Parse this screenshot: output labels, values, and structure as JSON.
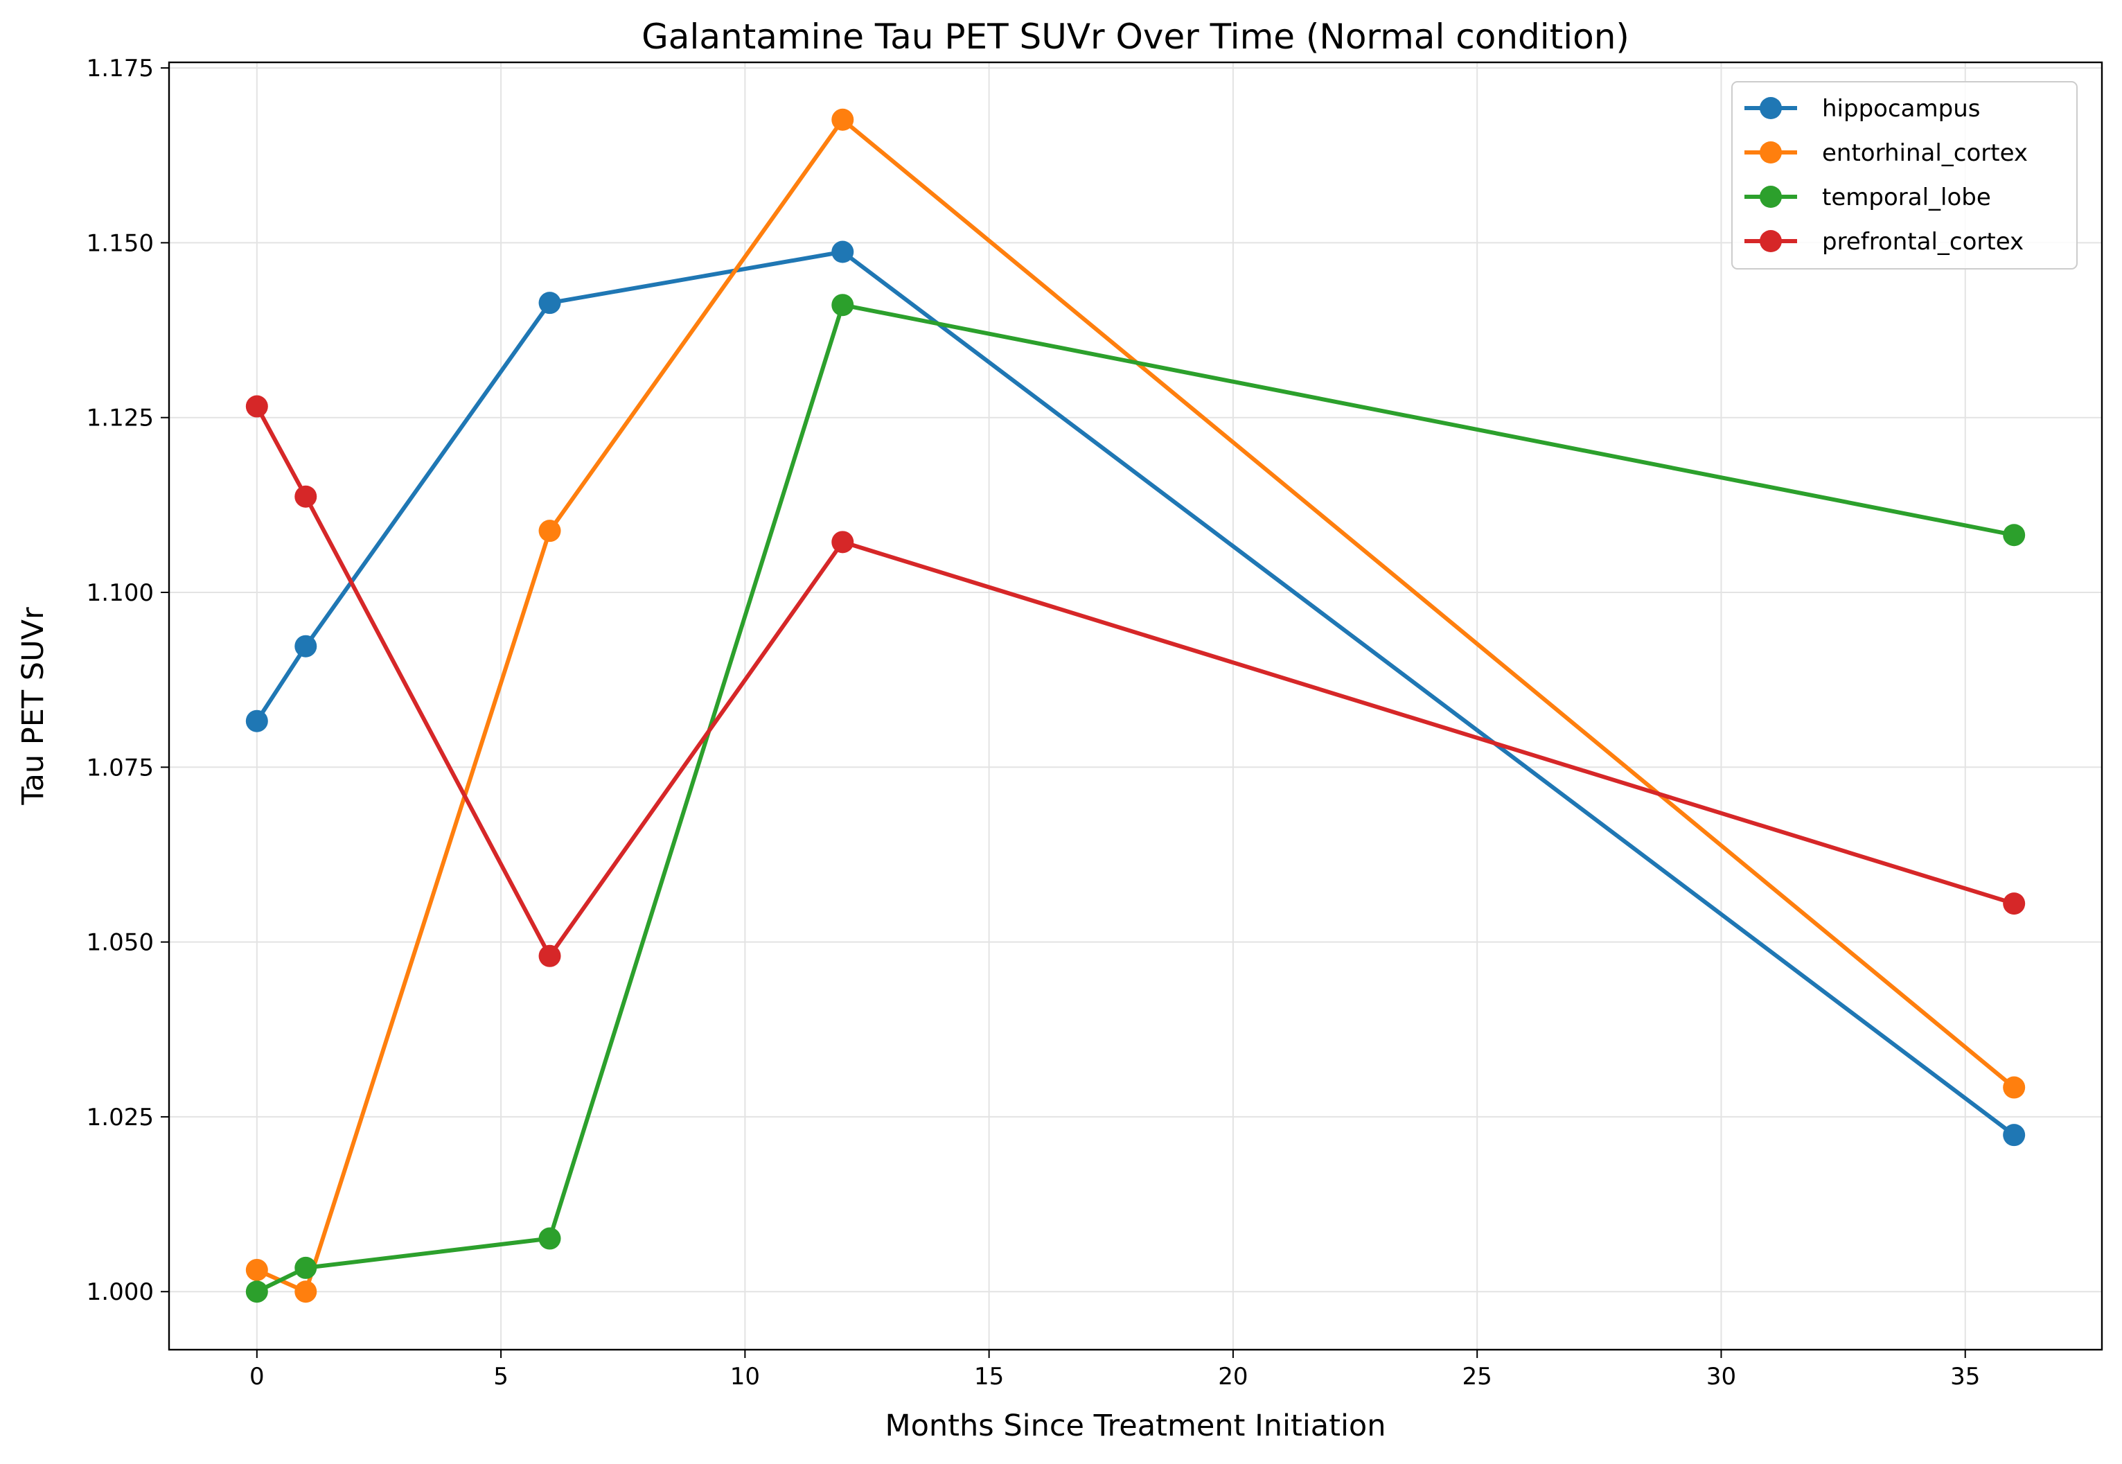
{
  "chart_data": {
    "type": "line",
    "title": "Galantamine Tau PET SUVr Over Time (Normal condition)",
    "xlabel": "Months Since Treatment Initiation",
    "ylabel": "Tau PET SUVr",
    "xlim": [
      -1.8,
      37.8
    ],
    "ylim": [
      0.9917,
      1.1758
    ],
    "xticks": [
      0,
      5,
      10,
      15,
      20,
      25,
      30,
      35
    ],
    "yticks": [
      1.0,
      1.025,
      1.05,
      1.075,
      1.1,
      1.125,
      1.15,
      1.175
    ],
    "ytick_labels": [
      "1.000",
      "1.025",
      "1.050",
      "1.075",
      "1.100",
      "1.125",
      "1.150",
      "1.175"
    ],
    "grid": true,
    "legend_position": "top-right",
    "x": [
      0,
      1,
      6,
      12,
      36
    ],
    "series": [
      {
        "name": "hippocampus",
        "color": "#1f77b4",
        "values": [
          1.0816,
          1.0923,
          1.1414,
          1.1487,
          1.0224
        ]
      },
      {
        "name": "entorhinal_cortex",
        "color": "#ff7f0e",
        "values": [
          1.0031,
          1.0,
          1.1088,
          1.1676,
          1.0292
        ]
      },
      {
        "name": "temporal_lobe",
        "color": "#2ca02c",
        "values": [
          1.0,
          1.0034,
          1.0076,
          1.1411,
          1.1082
        ]
      },
      {
        "name": "prefrontal_cortex",
        "color": "#d62728",
        "values": [
          1.1266,
          1.1137,
          1.048,
          1.1072,
          1.0555
        ]
      }
    ]
  }
}
